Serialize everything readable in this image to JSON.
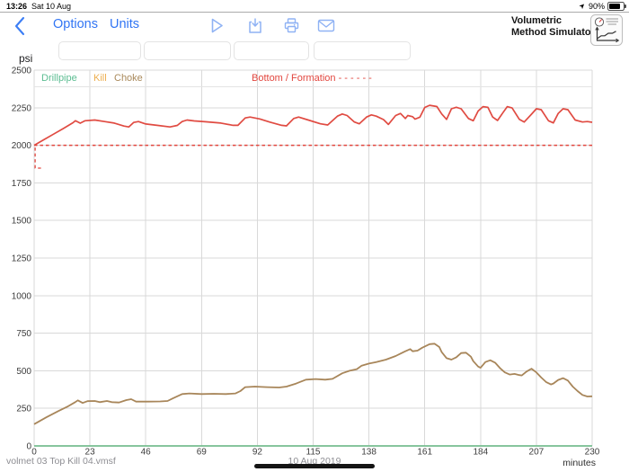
{
  "status_bar": {
    "time": "13:26",
    "date": "Sat 10 Aug",
    "battery_percent": "90%"
  },
  "toolbar": {
    "options_label": "Options",
    "units_label": "Units",
    "app_title_line1": "Volumetric",
    "app_title_line2": "Method Simulator"
  },
  "fields": {
    "values": [
      "",
      "",
      "",
      ""
    ]
  },
  "footer": {
    "filename": "volmet 03 Top Kill 04.vmsf",
    "date": "10 Aug 2019"
  },
  "chart_data": {
    "type": "line",
    "ylabel": "psi",
    "xlabel": "minutes",
    "xlim": [
      0,
      230
    ],
    "ylim": [
      0,
      2500
    ],
    "xticks": [
      0,
      23,
      46,
      69,
      92,
      115,
      138,
      161,
      184,
      207,
      230
    ],
    "yticks": [
      0,
      250,
      500,
      750,
      1000,
      1250,
      1500,
      1750,
      2000,
      2250,
      2500
    ],
    "grid": true,
    "legend_position": "top-inside",
    "legend": [
      {
        "label": "Drillpipe",
        "color": "#5cbd92",
        "dashes": ""
      },
      {
        "label": "Kill",
        "color": "#edae4e",
        "dashes": ""
      },
      {
        "label": "Choke",
        "color": "#a9895b",
        "dashes": ""
      },
      {
        "label": "Bottom / Formation",
        "color": "#e2463e",
        "dashes": "- - - - - -"
      }
    ],
    "series": [
      {
        "name": "formation",
        "color": "#e2463e",
        "dashed": true,
        "width": 1.5,
        "points": [
          [
            0,
            2000
          ],
          [
            230,
            2000
          ]
        ]
      },
      {
        "name": "formation-start",
        "color": "#e2463e",
        "dashed": true,
        "width": 1.3,
        "points": [
          [
            0.4,
            1985
          ],
          [
            0.4,
            1848
          ],
          [
            2.8,
            1848
          ]
        ]
      },
      {
        "name": "kill",
        "color": "#edae4e",
        "width": 1.5,
        "points": [
          [
            0,
            0
          ],
          [
            230,
            0
          ]
        ]
      },
      {
        "name": "drillpipe",
        "color": "#62bf9a",
        "width": 1.6,
        "points": [
          [
            0,
            0
          ],
          [
            230,
            0
          ]
        ]
      },
      {
        "name": "choke",
        "color": "#a8865a",
        "width": 1.8,
        "points": [
          [
            0,
            145
          ],
          [
            5,
            190
          ],
          [
            10,
            232
          ],
          [
            14,
            264
          ],
          [
            17,
            292
          ],
          [
            18,
            303
          ],
          [
            20,
            286
          ],
          [
            22,
            298
          ],
          [
            25,
            299
          ],
          [
            27,
            291
          ],
          [
            30,
            299
          ],
          [
            32,
            291
          ],
          [
            35,
            289
          ],
          [
            38,
            305
          ],
          [
            40,
            311
          ],
          [
            42,
            295
          ],
          [
            47,
            295
          ],
          [
            52,
            296
          ],
          [
            55,
            299
          ],
          [
            57,
            315
          ],
          [
            61,
            345
          ],
          [
            64,
            349
          ],
          [
            69,
            345
          ],
          [
            74,
            347
          ],
          [
            79,
            345
          ],
          [
            83,
            349
          ],
          [
            85,
            365
          ],
          [
            87,
            391
          ],
          [
            91,
            395
          ],
          [
            96,
            391
          ],
          [
            101,
            389
          ],
          [
            104,
            395
          ],
          [
            108,
            415
          ],
          [
            112,
            441
          ],
          [
            116,
            445
          ],
          [
            120,
            441
          ],
          [
            123,
            446
          ],
          [
            127,
            483
          ],
          [
            130,
            500
          ],
          [
            133,
            511
          ],
          [
            135,
            534
          ],
          [
            138,
            548
          ],
          [
            141,
            558
          ],
          [
            145,
            574
          ],
          [
            149,
            598
          ],
          [
            151,
            614
          ],
          [
            153,
            630
          ],
          [
            155,
            644
          ],
          [
            156,
            630
          ],
          [
            158,
            634
          ],
          [
            160,
            654
          ],
          [
            163,
            677
          ],
          [
            165,
            680
          ],
          [
            167,
            658
          ],
          [
            168,
            624
          ],
          [
            170,
            584
          ],
          [
            172,
            574
          ],
          [
            174,
            590
          ],
          [
            176,
            618
          ],
          [
            178,
            620
          ],
          [
            180,
            594
          ],
          [
            181,
            564
          ],
          [
            183,
            528
          ],
          [
            184,
            520
          ],
          [
            186,
            558
          ],
          [
            188,
            570
          ],
          [
            190,
            554
          ],
          [
            192,
            518
          ],
          [
            194,
            489
          ],
          [
            196,
            475
          ],
          [
            198,
            479
          ],
          [
            200,
            471
          ],
          [
            201,
            469
          ],
          [
            203,
            495
          ],
          [
            205,
            514
          ],
          [
            207,
            489
          ],
          [
            209,
            455
          ],
          [
            211,
            425
          ],
          [
            213,
            409
          ],
          [
            214,
            415
          ],
          [
            216,
            439
          ],
          [
            218,
            451
          ],
          [
            220,
            435
          ],
          [
            222,
            395
          ],
          [
            224,
            365
          ],
          [
            226,
            339
          ],
          [
            228,
            329
          ],
          [
            230,
            330
          ]
        ]
      },
      {
        "name": "bottom",
        "color": "#e04b42",
        "width": 1.7,
        "points": [
          [
            0,
            2000
          ],
          [
            4,
            2037
          ],
          [
            8,
            2074
          ],
          [
            12,
            2111
          ],
          [
            16,
            2150
          ],
          [
            17,
            2163
          ],
          [
            19,
            2147
          ],
          [
            21,
            2163
          ],
          [
            25,
            2168
          ],
          [
            29,
            2158
          ],
          [
            33,
            2148
          ],
          [
            37,
            2128
          ],
          [
            39,
            2122
          ],
          [
            41,
            2152
          ],
          [
            43,
            2158
          ],
          [
            46,
            2142
          ],
          [
            51,
            2132
          ],
          [
            56,
            2122
          ],
          [
            59,
            2132
          ],
          [
            61,
            2158
          ],
          [
            63,
            2168
          ],
          [
            66,
            2162
          ],
          [
            71,
            2156
          ],
          [
            77,
            2148
          ],
          [
            82,
            2133
          ],
          [
            84,
            2133
          ],
          [
            87,
            2182
          ],
          [
            89,
            2188
          ],
          [
            93,
            2175
          ],
          [
            97,
            2155
          ],
          [
            102,
            2133
          ],
          [
            104,
            2129
          ],
          [
            107,
            2178
          ],
          [
            109,
            2188
          ],
          [
            113,
            2168
          ],
          [
            118,
            2143
          ],
          [
            121,
            2135
          ],
          [
            125,
            2194
          ],
          [
            127,
            2208
          ],
          [
            129,
            2198
          ],
          [
            132,
            2155
          ],
          [
            134,
            2143
          ],
          [
            137,
            2188
          ],
          [
            139,
            2202
          ],
          [
            141,
            2194
          ],
          [
            144,
            2171
          ],
          [
            146,
            2139
          ],
          [
            149,
            2198
          ],
          [
            151,
            2212
          ],
          [
            153,
            2178
          ],
          [
            154,
            2198
          ],
          [
            156,
            2190
          ],
          [
            157,
            2174
          ],
          [
            159,
            2187
          ],
          [
            161,
            2252
          ],
          [
            163,
            2266
          ],
          [
            166,
            2258
          ],
          [
            168,
            2208
          ],
          [
            170,
            2172
          ],
          [
            172,
            2243
          ],
          [
            174,
            2253
          ],
          [
            176,
            2243
          ],
          [
            179,
            2178
          ],
          [
            181,
            2163
          ],
          [
            183,
            2228
          ],
          [
            185,
            2257
          ],
          [
            187,
            2253
          ],
          [
            189,
            2188
          ],
          [
            191,
            2165
          ],
          [
            193,
            2212
          ],
          [
            195,
            2257
          ],
          [
            197,
            2248
          ],
          [
            200,
            2172
          ],
          [
            202,
            2155
          ],
          [
            205,
            2207
          ],
          [
            207,
            2243
          ],
          [
            209,
            2237
          ],
          [
            212,
            2163
          ],
          [
            214,
            2149
          ],
          [
            216,
            2212
          ],
          [
            218,
            2243
          ],
          [
            220,
            2237
          ],
          [
            223,
            2168
          ],
          [
            226,
            2155
          ],
          [
            228,
            2158
          ],
          [
            230,
            2153
          ]
        ]
      }
    ]
  }
}
